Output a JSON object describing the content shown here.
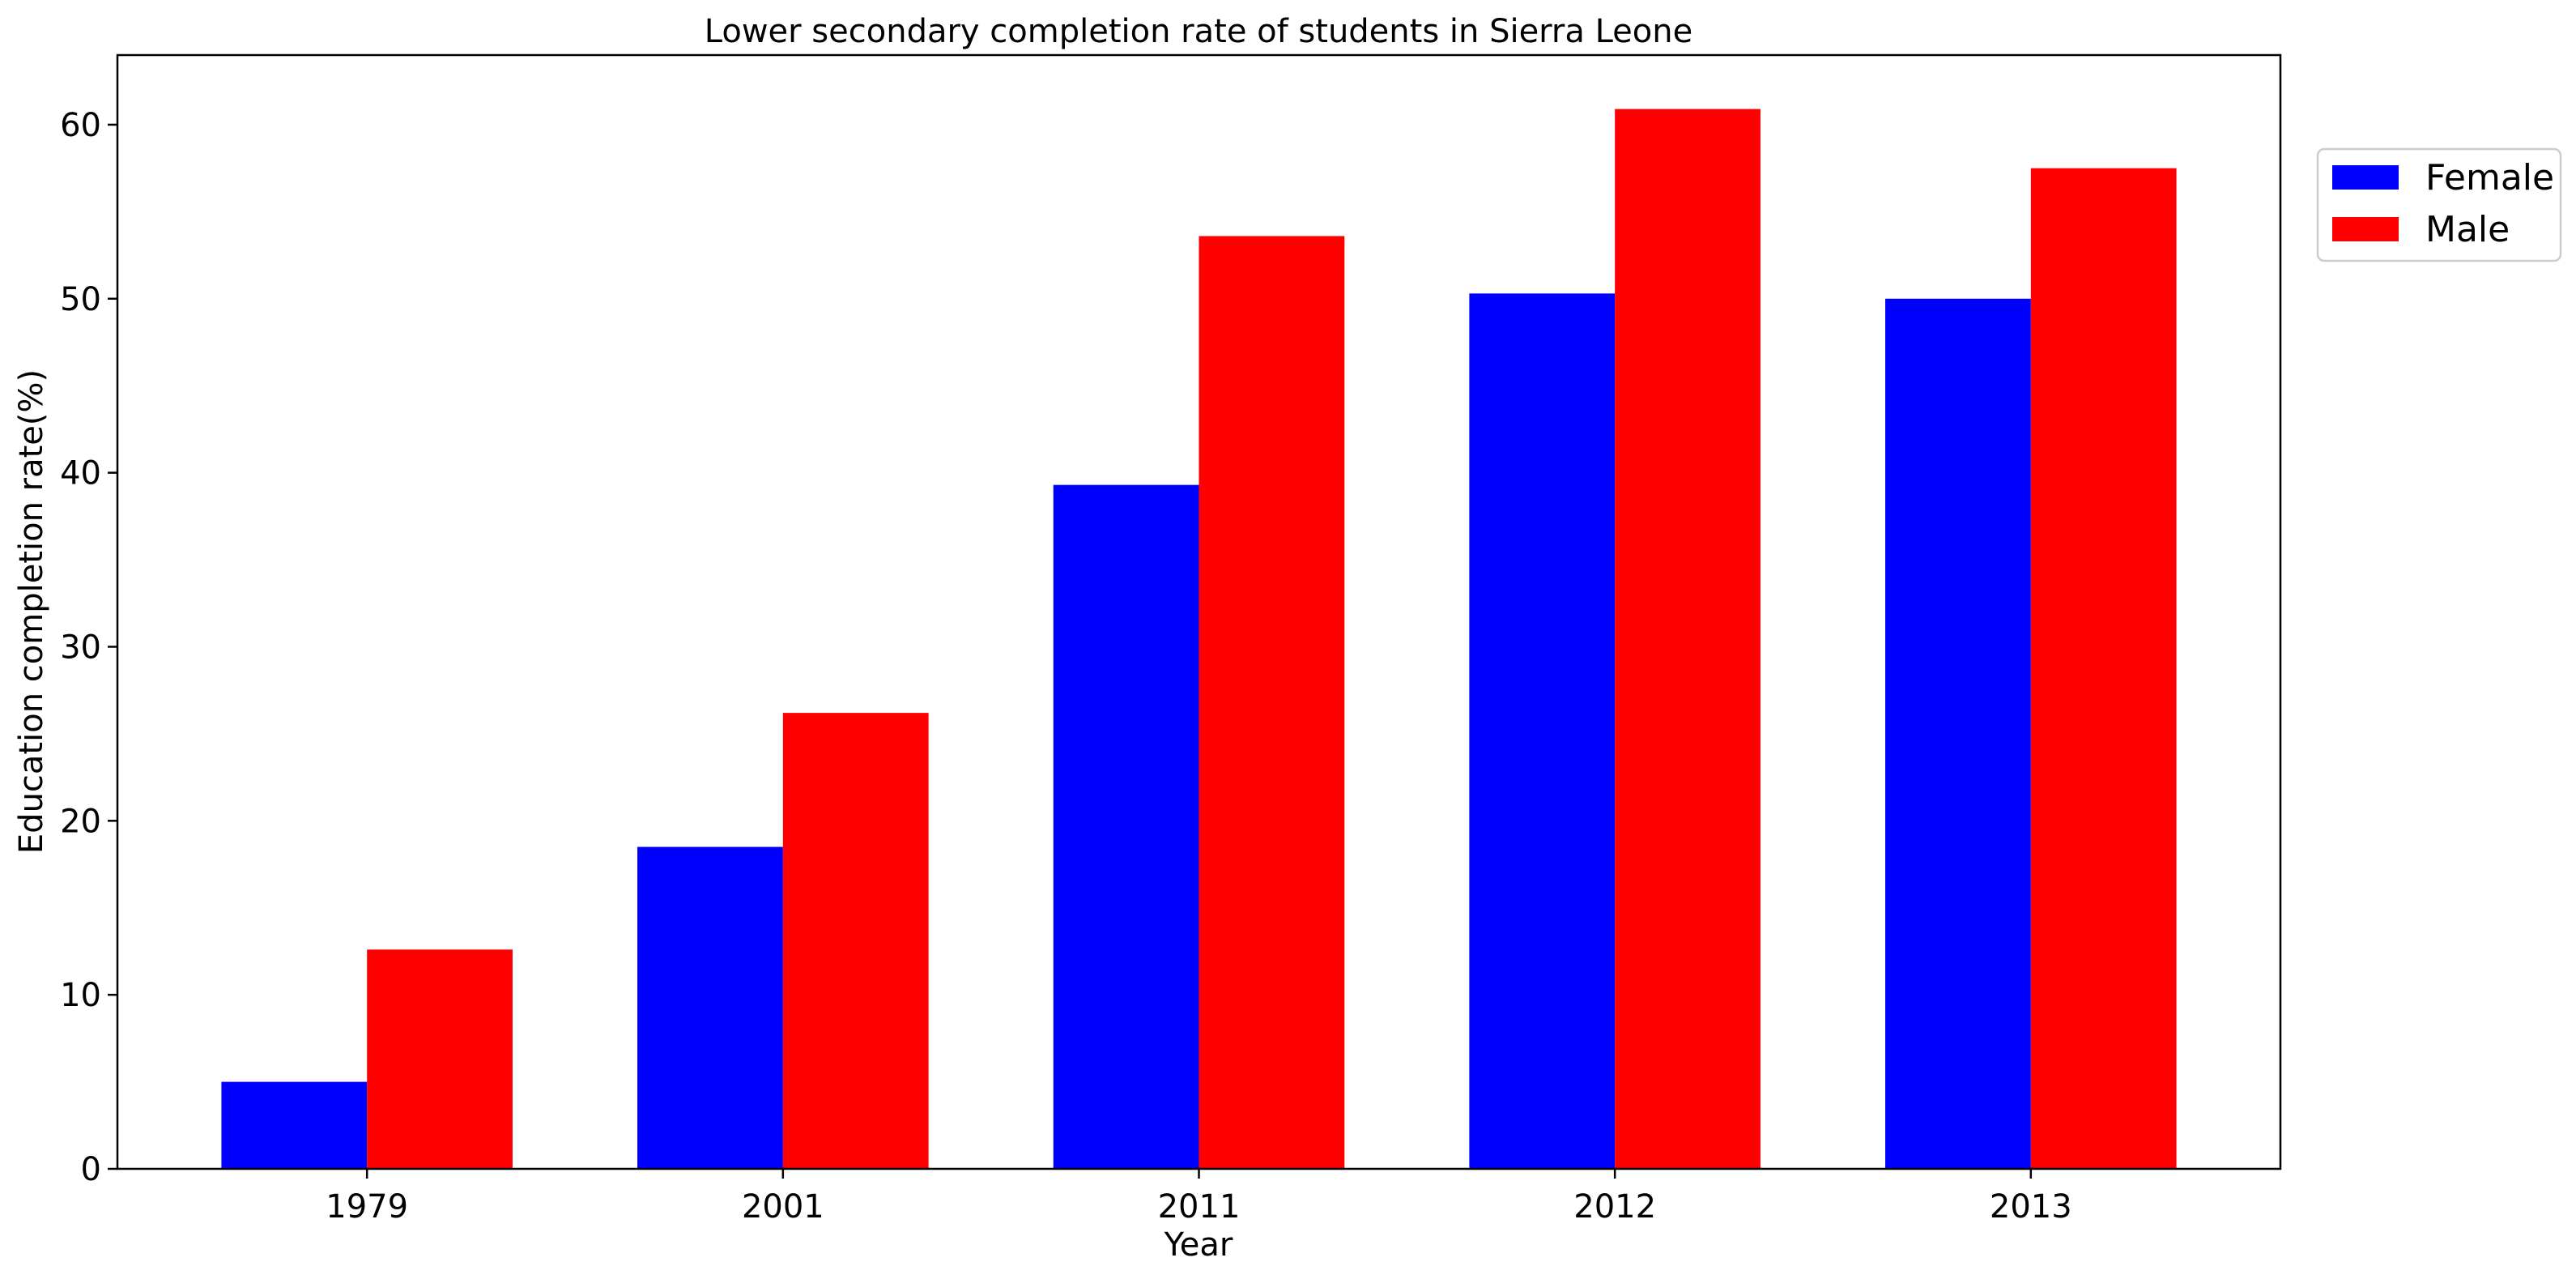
{
  "chart_data": {
    "type": "bar",
    "title": "Lower secondary completion rate of students in Sierra Leone",
    "xlabel": "Year",
    "ylabel": "Education completion rate(%)",
    "categories": [
      "1979",
      "2001",
      "2011",
      "2012",
      "2013"
    ],
    "series": [
      {
        "name": "Female",
        "color": "#0000ff",
        "values": [
          5.0,
          18.5,
          39.3,
          50.3,
          50.0
        ]
      },
      {
        "name": "Male",
        "color": "#ff0000",
        "values": [
          12.6,
          26.2,
          53.6,
          60.9,
          57.5
        ]
      }
    ],
    "ylim": [
      0,
      64
    ],
    "yticks": [
      0,
      10,
      20,
      30,
      40,
      50,
      60
    ],
    "grid": false,
    "legend_position": "top-right outside"
  }
}
